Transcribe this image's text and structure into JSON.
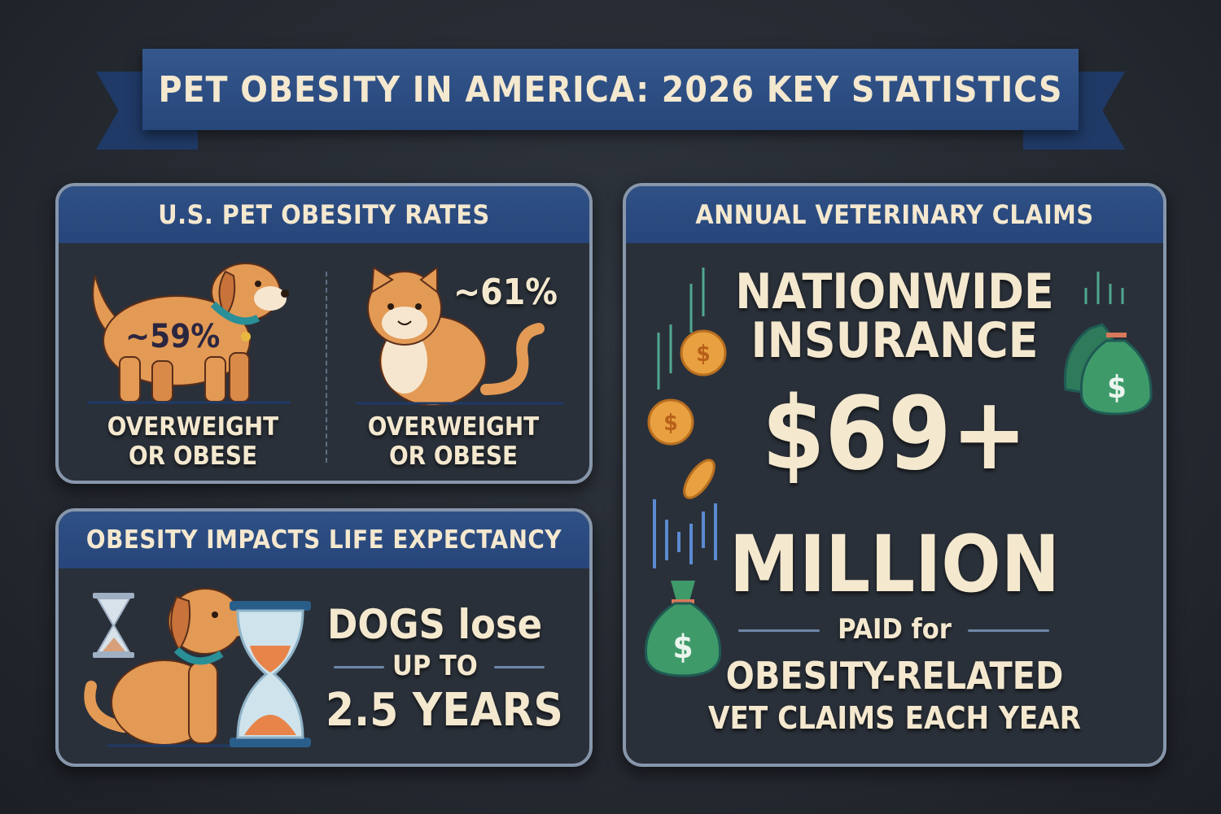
{
  "title": "PET OBESITY IN AMERICA: 2026 KEY STATISTICS",
  "obesity_rates": {
    "heading": "U.S. PET OBESITY RATES",
    "dog": {
      "value": "~59%",
      "label_line1": "OVERWEIGHT",
      "label_line2": "OR OBESE",
      "icon": "dog-icon"
    },
    "cat": {
      "value": "~61%",
      "label_line1": "OVERWEIGHT",
      "label_line2": "OR OBESE",
      "icon": "cat-icon"
    }
  },
  "life_expectancy": {
    "heading": "OBESITY IMPACTS LIFE EXPECTANCY",
    "line1": "DOGS lose",
    "line2": "UP TO",
    "line3": "2.5 YEARS",
    "icons": [
      "hourglass-icon",
      "dog-icon"
    ]
  },
  "vet_claims": {
    "heading": "ANNUAL VETERINARY CLAIMS",
    "company_line1": "NATIONWIDE",
    "company_line2": "INSURANCE",
    "amount": "$69+",
    "unit": "MILLION",
    "line_paid": "PAID for",
    "line_a": "OBESITY-RELATED",
    "line_b": "VET CLAIMS EACH YEAR",
    "icons": [
      "coin-icon",
      "money-bag-icon",
      "bar-chart-icon"
    ]
  },
  "colors": {
    "banner": "#2c4c80",
    "text": "#f4e8cf",
    "background": "#262b33",
    "pet_orange": "#e39a55",
    "money_green": "#3f9a6a",
    "coin_gold": "#e8a040"
  }
}
